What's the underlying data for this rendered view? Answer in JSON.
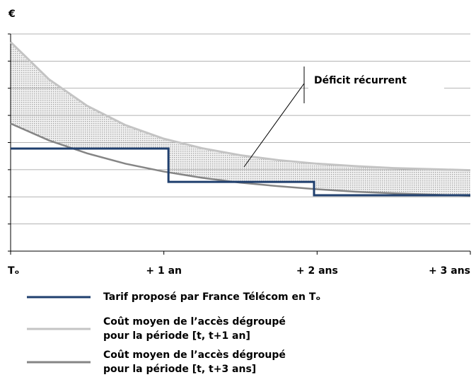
{
  "chart_data": {
    "type": "line",
    "ylabel": "€",
    "xlim": [
      0,
      3
    ],
    "xticks": [
      {
        "value": 0,
        "label": "Tₒ"
      },
      {
        "value": 1,
        "label": "+ 1 an"
      },
      {
        "value": 2,
        "label": "+ 2 ans"
      },
      {
        "value": 3,
        "label": "+ 3 ans"
      }
    ],
    "ylim": [
      0,
      8
    ],
    "yticks": [
      0,
      1,
      2,
      3,
      4,
      5,
      6,
      7,
      8
    ],
    "grid": true,
    "annotation": "Déficit récurrent",
    "series": [
      {
        "name": "Tarif proposé par France Télécom en Tₒ",
        "color": "#1f3f6e",
        "x": [
          0,
          1.03,
          1.03,
          1.98,
          1.98,
          3
        ],
        "values": [
          3.78,
          3.78,
          2.55,
          2.55,
          2.06,
          2.06
        ]
      },
      {
        "name": "Coût moyen de l’accès dégroupé\npour la période [t, t+1 an]",
        "color": "#c4c4c4",
        "x": [
          0,
          0.25,
          0.5,
          0.75,
          1,
          1.25,
          1.5,
          1.75,
          2,
          2.25,
          2.5,
          2.75,
          3
        ],
        "values": [
          7.7,
          6.33,
          5.35,
          4.64,
          4.14,
          3.79,
          3.53,
          3.35,
          3.22,
          3.13,
          3.06,
          3.02,
          2.98
        ]
      },
      {
        "name": "Coût moyen de l’accès dégroupé\npour la période [t, t+3 ans]",
        "color": "#858585",
        "x": [
          0,
          0.25,
          0.5,
          0.75,
          1,
          1.25,
          1.5,
          1.75,
          2,
          2.25,
          2.5,
          2.75,
          3
        ],
        "values": [
          4.7,
          4.08,
          3.6,
          3.22,
          2.93,
          2.7,
          2.52,
          2.39,
          2.28,
          2.19,
          2.13,
          2.08,
          2.04
        ]
      }
    ]
  }
}
